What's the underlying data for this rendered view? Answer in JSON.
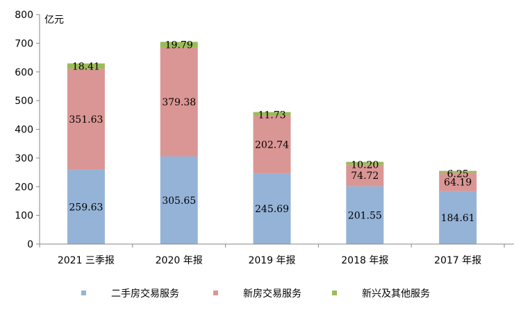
{
  "chart_data": {
    "type": "bar",
    "stacked": true,
    "title": "",
    "xlabel": "",
    "ylabel": "亿元",
    "ylim": [
      0,
      800
    ],
    "yticks": [
      0,
      100,
      200,
      300,
      400,
      500,
      600,
      700,
      800
    ],
    "categories": [
      "2021 三季报",
      "2020 年报",
      "2019 年报",
      "2018 年报",
      "2017 年报"
    ],
    "series": [
      {
        "name": "二手房交易服务",
        "color": "#95B3D7",
        "values": [
          259.63,
          305.65,
          245.69,
          201.55,
          184.61
        ],
        "labels": [
          "259.63",
          "305.65",
          "245.69",
          "201.55",
          "184.61"
        ]
      },
      {
        "name": "新房交易服务",
        "color": "#DA9694",
        "values": [
          351.63,
          379.38,
          202.74,
          74.72,
          64.19
        ],
        "labels": [
          "351.63",
          "379.38",
          "202.74",
          "74.72",
          "64.19"
        ]
      },
      {
        "name": "新兴及其他服务",
        "color": "#9BBB59",
        "values": [
          18.41,
          19.79,
          11.73,
          10.2,
          6.25
        ],
        "labels": [
          "18.41",
          "19.79",
          "11.73",
          "10.20",
          "6.25"
        ]
      }
    ],
    "legend_position": "bottom",
    "grid": false
  }
}
